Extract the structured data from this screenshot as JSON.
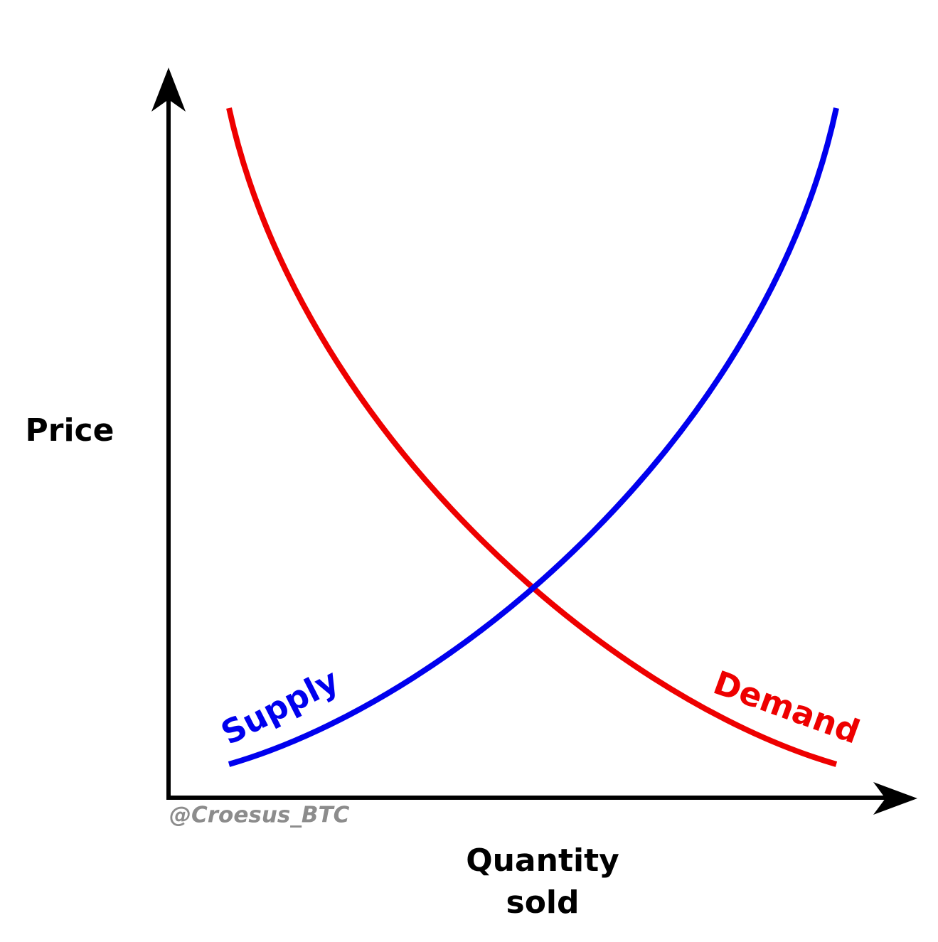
{
  "axes": {
    "y_label": "Price",
    "x_label": [
      "Quantity",
      "sold"
    ]
  },
  "curves": {
    "supply": "Supply",
    "demand": "Demand"
  },
  "watermark": "@Croesus_BTC"
}
